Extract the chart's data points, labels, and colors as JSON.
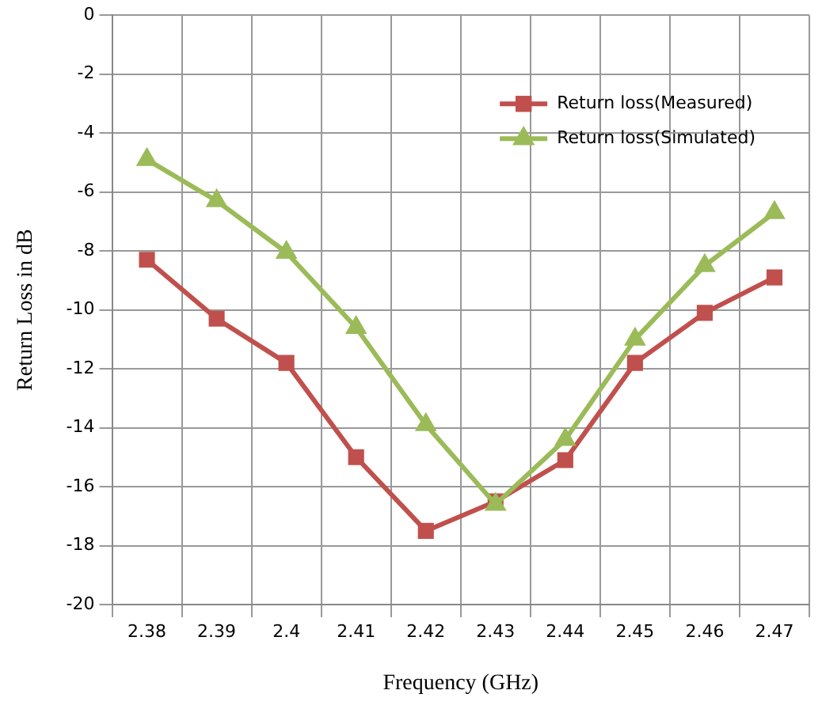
{
  "chart_data": {
    "type": "line",
    "xlabel": "Frequency (GHz)",
    "ylabel": "Return Loss in dB",
    "categories": [
      "2.38",
      "2.39",
      "2.4",
      "2.41",
      "2.42",
      "2.43",
      "2.44",
      "2.45",
      "2.46",
      "2.47"
    ],
    "series": [
      {
        "name": "Return loss(Measured)",
        "color": "#c0504d",
        "marker": "square",
        "values": [
          -8.3,
          -10.3,
          -11.8,
          -15.0,
          -17.5,
          -16.5,
          -15.1,
          -11.8,
          -10.1,
          -8.9
        ]
      },
      {
        "name": "Return loss(Simulated)",
        "color": "#9bbb59",
        "marker": "triangle",
        "values": [
          -4.9,
          -6.3,
          -8.05,
          -10.6,
          -13.9,
          -16.6,
          -14.4,
          -11.0,
          -8.5,
          -6.7
        ]
      }
    ],
    "ylim": [
      -20,
      0
    ],
    "yticks": [
      -20,
      -18,
      -16,
      -14,
      -12,
      -10,
      -8,
      -6,
      -4,
      -2,
      0
    ],
    "grid": true,
    "legend": "top right",
    "line_style": "solid"
  }
}
